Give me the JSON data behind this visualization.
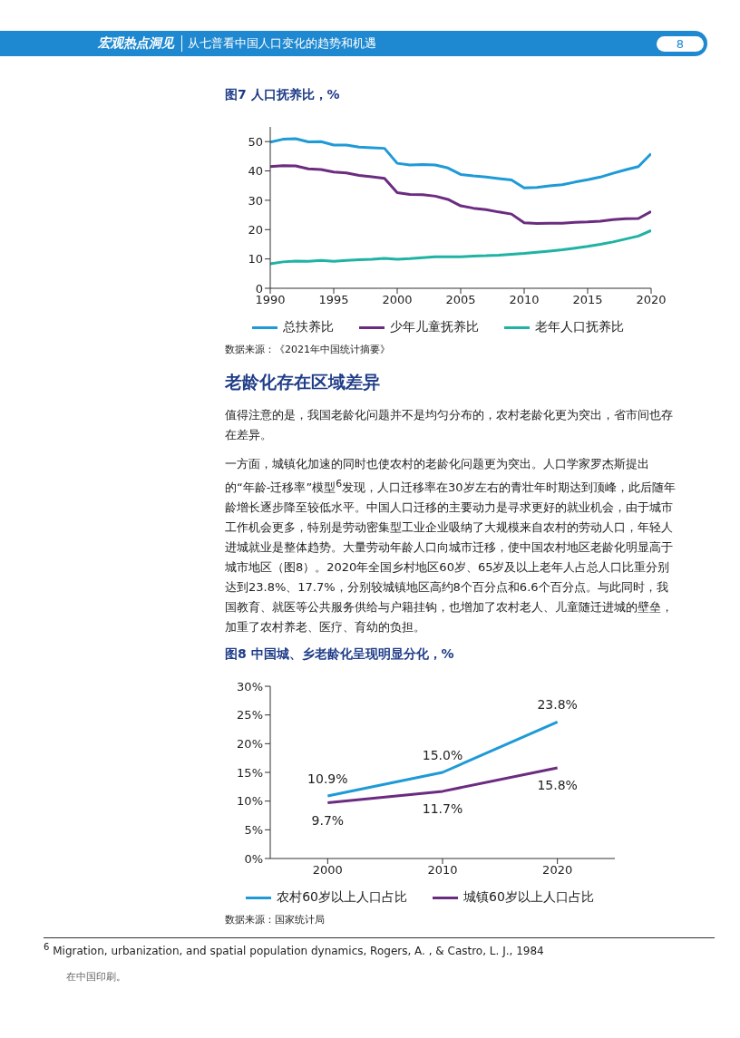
{
  "chart_data": [
    {
      "type": "line",
      "title": "图7 人口抚养比，%",
      "x": [
        1990,
        1991,
        1992,
        1993,
        1994,
        1995,
        1996,
        1997,
        1998,
        1999,
        2000,
        2001,
        2002,
        2003,
        2004,
        2005,
        2006,
        2007,
        2008,
        2009,
        2010,
        2011,
        2012,
        2013,
        2014,
        2015,
        2016,
        2017,
        2018,
        2019,
        2020
      ],
      "series": [
        {
          "name": "总扶养比",
          "color": "#1e9ad6",
          "values": [
            49.8,
            50.8,
            51.0,
            49.9,
            50.0,
            48.8,
            48.8,
            48.1,
            47.9,
            47.7,
            42.6,
            42.0,
            42.2,
            42.0,
            41.0,
            38.8,
            38.3,
            37.9,
            37.4,
            36.9,
            34.2,
            34.4,
            34.9,
            35.3,
            36.2,
            37.0,
            37.9,
            39.2,
            40.4,
            41.5,
            45.9
          ]
        },
        {
          "name": "少年儿童抚养比",
          "color": "#6b2c80",
          "values": [
            41.5,
            41.8,
            41.7,
            40.7,
            40.5,
            39.6,
            39.3,
            38.5,
            38.0,
            37.5,
            32.6,
            32.0,
            31.9,
            31.4,
            30.3,
            28.1,
            27.3,
            26.8,
            26.0,
            25.3,
            22.3,
            22.1,
            22.2,
            22.2,
            22.5,
            22.6,
            22.9,
            23.4,
            23.7,
            23.8,
            26.2
          ]
        },
        {
          "name": "老年人口抚养比",
          "color": "#1fb3a3",
          "values": [
            8.3,
            9.0,
            9.3,
            9.2,
            9.5,
            9.2,
            9.5,
            9.7,
            9.9,
            10.2,
            9.9,
            10.1,
            10.4,
            10.7,
            10.7,
            10.7,
            11.0,
            11.1,
            11.3,
            11.6,
            11.9,
            12.3,
            12.7,
            13.1,
            13.7,
            14.3,
            15.0,
            15.8,
            16.8,
            17.8,
            19.7
          ]
        }
      ],
      "xlim": [
        1990,
        2020
      ],
      "xticks": [
        1990,
        1995,
        2000,
        2005,
        2010,
        2015,
        2020
      ],
      "ylim": [
        0,
        55
      ],
      "yticks": [
        0,
        10,
        20,
        30,
        40,
        50
      ],
      "grid": false,
      "legend": "bottom",
      "marker": "none",
      "line_style": "solid",
      "annotations": [
        "宏观热点洞见",
        "从七普看中国人口变化的趋势和机遇",
        "8",
        "数据来源：《2021年中国统计摘要》"
      ]
    },
    {
      "type": "other",
      "title": "老龄化存在区域差异",
      "annotations": [
        "值得注意的是，我国老龄化问题并不是均匀分布的，农村老龄化更为突出，省市间也存在差异。",
        "一方面，城镇化加速的同时也使农村的老龄化问题更为突出。人口学家罗杰斯提出的“年龄-迁移率”模型$^{6}$发现，人口迁移率在30岁左右的青壮年时期达到顶峰，此后随年龄增长逐步降至较低水平。中国人口迁移的主要动力是寻求更好的就业机会，由于城市工作机会更多，特别是劳动密集型工业企业吸纳了大规模来自农村的劳动人口，年轻人进城就业是整体趋势。大量劳动年龄人口向城市迁移，使中国农村地区老龄化明显高于城市地区（图8）。2020年全国乡村地区60岁、65岁及以上老年人占总人口比重分别达到23.8%、17.7%，分别较城镇地区高约8个百分点和6.6个百分点。与此同时，我国教育、就医等公共服务供给与户籍挂钩，也增加了农村老人、儿童随迁进城的壁垒，加重了农村养老、医疗、育幼的负担。"
      ]
    },
    {
      "type": "line",
      "title": "图8 中国城、乡老龄化呈现明显分化，%",
      "categories": [
        "2000",
        "2010",
        "2020"
      ],
      "series": [
        {
          "name": "农村60岁以上人口占比",
          "color": "#1e9ad6",
          "values": [
            10.9,
            15.0,
            23.8
          ],
          "value_labels": [
            "10.9%",
            "15.0%",
            "23.8%"
          ]
        },
        {
          "name": "城镇60岁以上人口占比",
          "color": "#6b2c80",
          "values": [
            9.7,
            11.7,
            15.8
          ],
          "value_labels": [
            "9.7%",
            "11.7%",
            "15.8%"
          ]
        }
      ],
      "ylim": [
        0,
        30
      ],
      "yticks": [
        {
          "value": 0,
          "label": "0%"
        },
        {
          "value": 5,
          "label": "5%"
        },
        {
          "value": 10,
          "label": "10%"
        },
        {
          "value": 15,
          "label": "15%"
        },
        {
          "value": 20,
          "label": "20%"
        },
        {
          "value": 25,
          "label": "25%"
        },
        {
          "value": 30,
          "label": "30%"
        }
      ],
      "grid": false,
      "legend": "bottom",
      "marker": "none",
      "line_style": "solid",
      "annotations": [
        "数据来源：国家统计局",
        "$^{6}$ Migration, urbanization, and spatial population dynamics, Rogers, A. , & Castro, L. J., 1984",
        "在中国印刷。"
      ]
    }
  ]
}
